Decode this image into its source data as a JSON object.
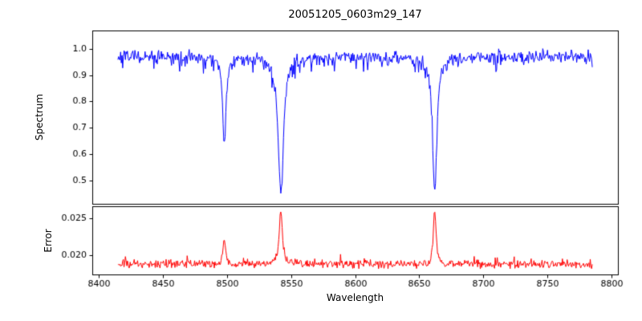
{
  "chart_data": {
    "type": "line",
    "title": "20051205_0603m29_147",
    "xlabel": "Wavelength",
    "legend": "none",
    "grid": false,
    "x_axis": {
      "range": [
        8395,
        8805
      ],
      "ticks": [
        8400,
        8450,
        8500,
        8550,
        8600,
        8650,
        8700,
        8750,
        8800
      ],
      "tick_labels": [
        "8400",
        "8450",
        "8500",
        "8550",
        "8600",
        "8650",
        "8700",
        "8750",
        "8800"
      ]
    },
    "x_data_range": [
      8415,
      8785
    ],
    "n_points": 700,
    "seed": 7,
    "panels": [
      {
        "name": "spectrum",
        "ylabel": "Spectrum",
        "color": "#0000ff",
        "ylim": [
          0.41,
          1.07
        ],
        "y_tick_values": [
          0.5,
          0.6,
          0.7,
          0.8,
          0.9,
          1.0
        ],
        "y_tick_labels": [
          "0.5",
          "0.6",
          "0.7",
          "0.8",
          "0.9",
          "1.0"
        ],
        "continuum": 0.97,
        "noise_sigma": 0.012,
        "downspike_prob": 0.1,
        "downspike_max": 0.05,
        "absorption_lines": [
          {
            "center": 8498.0,
            "depth": 0.34,
            "width": 1.5
          },
          {
            "center": 8542.1,
            "depth": 0.525,
            "width": 2.5
          },
          {
            "center": 8662.1,
            "depth": 0.52,
            "width": 2.0
          }
        ]
      },
      {
        "name": "error",
        "ylabel": "Error",
        "color": "#ff0000",
        "ylim": [
          0.0173,
          0.0267
        ],
        "y_tick_values": [
          0.02,
          0.025
        ],
        "y_tick_labels": [
          "0.020",
          "0.025"
        ],
        "baseline": 0.0187,
        "noise_sigma": 0.00028,
        "upspike_prob": 0.08,
        "upspike_max": 0.0009,
        "peaks": [
          {
            "center": 8498.0,
            "height": 0.0033,
            "width": 1.2
          },
          {
            "center": 8542.1,
            "height": 0.0072,
            "width": 1.5
          },
          {
            "center": 8662.1,
            "height": 0.0078,
            "width": 1.2
          }
        ]
      }
    ]
  }
}
